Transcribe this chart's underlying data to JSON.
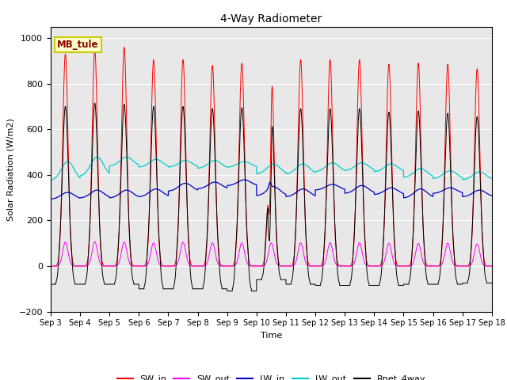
{
  "title": "4-Way Radiometer",
  "xlabel": "Time",
  "ylabel": "Solar Radiation (W/m2)",
  "ylim": [
    -200,
    1050
  ],
  "yticks": [
    -200,
    0,
    200,
    400,
    600,
    800,
    1000
  ],
  "x_labels": [
    "Sep 3",
    "Sep 4",
    "Sep 5",
    "Sep 6",
    "Sep 7",
    "Sep 8",
    "Sep 9",
    "Sep 10",
    "Sep 11",
    "Sep 12",
    "Sep 13",
    "Sep 14",
    "Sep 15",
    "Sep 16",
    "Sep 17",
    "Sep 18"
  ],
  "station_label": "MB_tule",
  "colors": {
    "SW_in": "#ff0000",
    "SW_out": "#ff00ff",
    "LW_in": "#0000cc",
    "LW_out": "#00cccc",
    "Rnet_4way": "#000000"
  },
  "n_days": 15,
  "points_per_day": 288,
  "SW_in_peak": [
    930,
    950,
    960,
    905,
    905,
    880,
    890,
    905,
    905,
    905,
    905,
    885,
    890,
    885,
    865
  ],
  "SW_out_peak": [
    108,
    110,
    108,
    105,
    108,
    105,
    105,
    105,
    105,
    105,
    105,
    103,
    103,
    103,
    100
  ],
  "LW_in_base": [
    293,
    298,
    298,
    303,
    328,
    338,
    352,
    308,
    303,
    333,
    318,
    313,
    298,
    318,
    303
  ],
  "LW_in_peak": [
    323,
    333,
    333,
    338,
    363,
    368,
    378,
    348,
    338,
    358,
    353,
    343,
    338,
    343,
    333
  ],
  "LW_out_base": [
    373,
    393,
    438,
    433,
    433,
    428,
    433,
    403,
    403,
    413,
    418,
    413,
    388,
    383,
    378
  ],
  "LW_out_peak": [
    458,
    478,
    478,
    468,
    463,
    463,
    458,
    448,
    448,
    453,
    453,
    448,
    428,
    418,
    413
  ],
  "Rnet_peak": [
    700,
    715,
    710,
    700,
    700,
    690,
    695,
    695,
    690,
    690,
    690,
    675,
    680,
    670,
    655
  ],
  "Rnet_night": [
    -80,
    -80,
    -80,
    -100,
    -100,
    -100,
    -110,
    -60,
    -80,
    -85,
    -85,
    -85,
    -80,
    -80,
    -75
  ],
  "background_color": "#e8e8e8",
  "fig_facecolor": "#ffffff"
}
